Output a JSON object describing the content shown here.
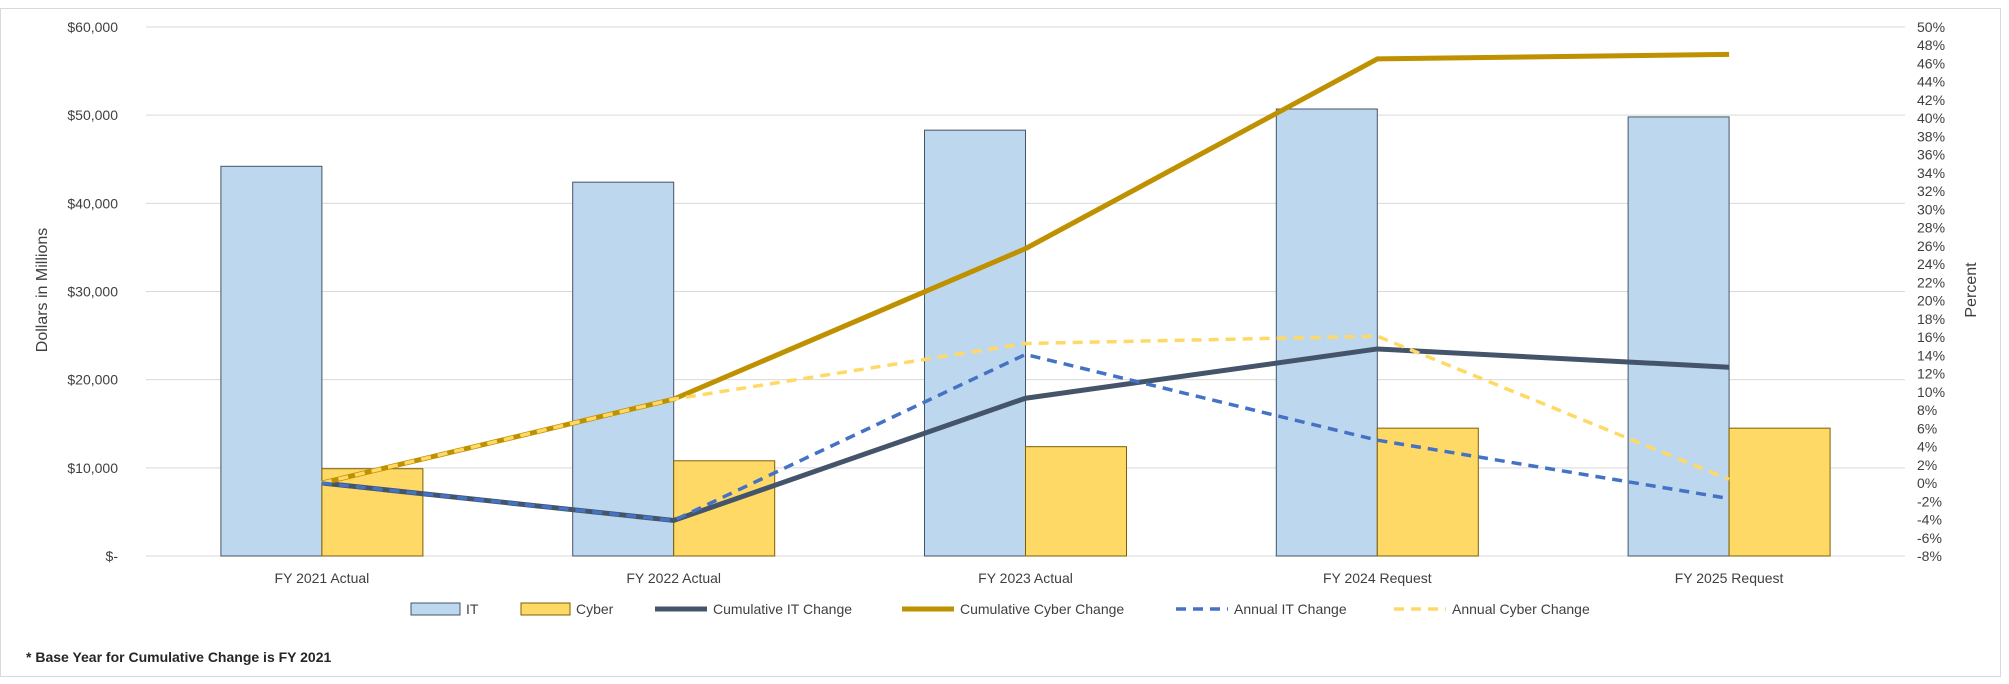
{
  "chart_data": {
    "type": "bar",
    "categories": [
      "FY 2021 Actual",
      "FY 2022 Actual",
      "FY 2023 Actual",
      "FY 2024 Request",
      "FY 2025 Request"
    ],
    "ylabel": "Dollars in  Millions",
    "y2label": "Percent",
    "ylim": [
      0,
      60000
    ],
    "y2lim": [
      -8,
      50
    ],
    "y_ticks": [
      "$-",
      "$10,000",
      "$20,000",
      "$30,000",
      "$40,000",
      "$50,000",
      "$60,000"
    ],
    "y2_ticks": [
      "-8%",
      "-6%",
      "-4%",
      "-2%",
      "0%",
      "2%",
      "4%",
      "6%",
      "8%",
      "10%",
      "12%",
      "14%",
      "16%",
      "18%",
      "20%",
      "22%",
      "24%",
      "26%",
      "28%",
      "30%",
      "32%",
      "34%",
      "36%",
      "38%",
      "40%",
      "42%",
      "44%",
      "46%",
      "48%",
      "50%"
    ],
    "grid": true,
    "legend_position": "bottom",
    "series": [
      {
        "name": "IT",
        "kind": "bar",
        "axis": "left",
        "color": "#BDD7EE",
        "values": [
          44200,
          42400,
          48300,
          50700,
          49800
        ]
      },
      {
        "name": "Cyber",
        "kind": "bar",
        "axis": "left",
        "color": "#FFD966",
        "values": [
          9900,
          10800,
          12400,
          14500,
          14500
        ]
      },
      {
        "name": "Cumulative IT Change",
        "kind": "line",
        "axis": "right",
        "color": "#44546A",
        "dashed": false,
        "values": [
          0,
          -4.1,
          9.3,
          14.7,
          12.7
        ]
      },
      {
        "name": "Cumulative Cyber Change",
        "kind": "line",
        "axis": "right",
        "color": "#BF9000",
        "dashed": false,
        "values": [
          0,
          9.2,
          25.7,
          46.5,
          47.0
        ]
      },
      {
        "name": "Annual IT Change",
        "kind": "line",
        "axis": "right",
        "color": "#4472C4",
        "dashed": true,
        "values": [
          0,
          -4.1,
          14.1,
          4.7,
          -1.7
        ]
      },
      {
        "name": "Annual Cyber Change",
        "kind": "line",
        "axis": "right",
        "color": "#FFD966",
        "dashed": true,
        "values": [
          0,
          9.2,
          15.3,
          16.1,
          0.4
        ]
      }
    ],
    "footnote": "* Base Year for Cumulative Change is FY 2021"
  }
}
